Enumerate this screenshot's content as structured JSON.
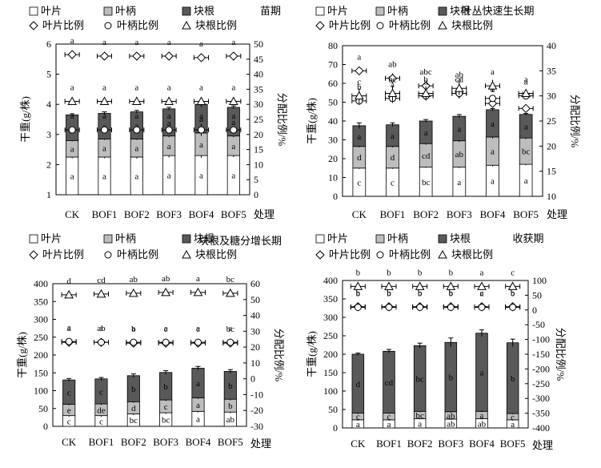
{
  "figure": {
    "category_axis_title": "处理",
    "left_axis_title": "干重(g/株)",
    "right_axis_title": "分配比例/%"
  },
  "legend": {
    "leaf": "叶片",
    "petiole": "叶柄",
    "root": "块根",
    "leaf_ratio": "叶片比例",
    "petiole_ratio": "叶柄比例",
    "root_ratio": "块根比例"
  },
  "colors": {
    "leaf": "#ffffff",
    "petiole": "#bdbdbd",
    "root": "#595959",
    "outline": "#000000"
  },
  "chart_data": [
    {
      "type": "bar",
      "title": "苗期",
      "stacked": true,
      "categories": [
        "CK",
        "BOF1",
        "BOF2",
        "BOF3",
        "BOF4",
        "BOF5"
      ],
      "ylim": [
        1,
        6
      ],
      "yticks": [
        1,
        2,
        3,
        4,
        5,
        6
      ],
      "y2lim": [
        0,
        50
      ],
      "y2ticks": [
        0,
        5,
        10,
        15,
        20,
        25,
        30,
        35,
        40,
        45,
        50
      ],
      "series": [
        {
          "name": "叶片",
          "values": [
            1.25,
            1.25,
            1.25,
            1.3,
            1.3,
            1.3
          ],
          "error": [
            0.04,
            0.04,
            0.05,
            0.06,
            0.07,
            0.05
          ]
        },
        {
          "name": "叶柄",
          "values": [
            0.55,
            0.6,
            0.6,
            0.65,
            0.75,
            0.65
          ],
          "error": [
            0.03,
            0.03,
            0.03,
            0.04,
            0.06,
            0.04
          ]
        },
        {
          "name": "块根",
          "values": [
            0.85,
            0.85,
            0.9,
            0.9,
            0.95,
            0.95
          ],
          "error": [
            0.04,
            0.05,
            0.05,
            0.05,
            0.09,
            0.05
          ]
        }
      ],
      "ratios": [
        {
          "name": "叶片比例",
          "values": [
            46.5,
            46,
            46,
            46,
            45.5,
            46
          ],
          "error": [
            0.3,
            0.3,
            0.3,
            0.3,
            0.4,
            0.3
          ]
        },
        {
          "name": "叶柄比例",
          "values": [
            21.5,
            21.5,
            21.5,
            21.5,
            21.5,
            21.5
          ],
          "error": [
            1,
            1,
            1,
            1,
            2,
            1
          ]
        },
        {
          "name": "块根比例",
          "values": [
            31,
            31,
            31,
            31,
            31,
            31
          ],
          "error": [
            0.5,
            0.5,
            0.5,
            0.5,
            0.8,
            0.5
          ]
        }
      ],
      "bar_letters": {
        "leaf": [
          "a",
          "a",
          "a",
          "a",
          "a",
          "a"
        ],
        "petiole": [
          "a",
          "a",
          "a",
          "a",
          "a",
          "a"
        ],
        "root": [
          "a",
          "a",
          "a",
          "a",
          "a",
          "a"
        ]
      },
      "ratio_letters": {
        "leaf": [
          "a",
          "a",
          "a",
          "a",
          "a",
          "a"
        ],
        "petiole": [
          "a",
          "a",
          "a",
          "a",
          "a",
          "a"
        ],
        "root": [
          "a",
          "a",
          "a",
          "a",
          "a",
          "a"
        ]
      }
    },
    {
      "type": "bar",
      "title": "叶丛快速生长期",
      "stacked": true,
      "categories": [
        "CK",
        "BOF1",
        "BOF2",
        "BOF3",
        "BOF4",
        "BOF5"
      ],
      "ylim": [
        0,
        80
      ],
      "yticks": [
        0,
        10,
        20,
        30,
        40,
        50,
        60,
        70,
        80
      ],
      "y2lim": [
        10,
        40
      ],
      "y2ticks": [
        10,
        15,
        20,
        25,
        30,
        35,
        40
      ],
      "series": [
        {
          "name": "叶片",
          "values": [
            15,
            15,
            15.5,
            15.5,
            16.5,
            17
          ],
          "error": [
            0.4,
            0.4,
            0.4,
            0.5,
            0.6,
            0.5
          ]
        },
        {
          "name": "叶柄",
          "values": [
            11.5,
            11.5,
            12.5,
            14,
            15,
            14
          ],
          "error": [
            0.5,
            0.5,
            0.6,
            0.6,
            0.7,
            0.6
          ]
        },
        {
          "name": "块根",
          "values": [
            11,
            11.5,
            12,
            13,
            14.5,
            12.5
          ],
          "error": [
            1.5,
            1,
            0.8,
            0.9,
            0.6,
            0.5
          ]
        }
      ],
      "ratios": [
        {
          "name": "叶片比例",
          "values": [
            35,
            33.5,
            32,
            30.5,
            28.5,
            27.5
          ],
          "error": [
            0.8,
            1,
            0.8,
            0.7,
            0.6,
            0.5
          ]
        },
        {
          "name": "叶柄比例",
          "values": [
            29,
            29.5,
            30,
            30.5,
            29.5,
            30
          ],
          "error": [
            0.8,
            0.9,
            0.9,
            1,
            0.6,
            0.6
          ]
        },
        {
          "name": "块根比例",
          "values": [
            30,
            30.5,
            30.5,
            31.5,
            32,
            30.5
          ],
          "error": [
            1.5,
            1.5,
            1.4,
            1.3,
            1.2,
            0.6
          ]
        }
      ],
      "bar_letters": {
        "leaf": [
          "c",
          "c",
          "bc",
          "a",
          "a",
          "a"
        ],
        "petiole": [
          "d",
          "d",
          "cd",
          "ab",
          "a",
          "bc"
        ],
        "root": [
          "a",
          "a",
          "a",
          "a",
          "a",
          "a"
        ]
      },
      "ratio_letters": {
        "leaf": [
          "a",
          "ab",
          "abc",
          "cd",
          "d",
          "bc"
        ],
        "petiole": [
          "b",
          "a",
          "a",
          "a",
          "a",
          "a"
        ],
        "root": [
          "c",
          "bc",
          "b",
          "ab",
          "a",
          "a"
        ]
      }
    },
    {
      "type": "bar",
      "title": "块根及糖分增长期",
      "stacked": true,
      "categories": [
        "CK",
        "BOF1",
        "BOF2",
        "BOF3",
        "BOF4",
        "BOF5"
      ],
      "ylim": [
        0,
        400
      ],
      "yticks": [
        0,
        50,
        100,
        150,
        200,
        250,
        300,
        350,
        400
      ],
      "y2lim": [
        -30,
        60
      ],
      "y2ticks": [
        -30,
        -20,
        -10,
        0,
        10,
        20,
        30,
        40,
        50,
        60
      ],
      "series": [
        {
          "name": "叶片",
          "values": [
            30,
            30,
            35,
            38,
            42,
            40
          ],
          "error": [
            3,
            3,
            3,
            3,
            3,
            3
          ]
        },
        {
          "name": "叶柄",
          "values": [
            32,
            33,
            34,
            36,
            38,
            36
          ],
          "error": [
            3,
            3,
            3,
            3,
            3,
            3
          ]
        },
        {
          "name": "块根",
          "values": [
            68,
            70,
            73,
            77,
            83,
            78
          ],
          "error": [
            4,
            4,
            5,
            5,
            5,
            5
          ]
        }
      ],
      "ratios": [
        {
          "name": "叶片比例",
          "values": [
            23,
            23,
            22.5,
            22.5,
            22.5,
            22.5
          ],
          "error": [
            0.8,
            0.8,
            0.8,
            0.8,
            0.8,
            0.8
          ]
        },
        {
          "name": "叶柄比例",
          "values": [
            23.5,
            23,
            23,
            23,
            23,
            23
          ],
          "error": [
            0.8,
            0.8,
            0.8,
            0.8,
            0.8,
            0.8
          ]
        },
        {
          "name": "块根比例",
          "values": [
            53,
            53.5,
            54,
            54.5,
            54.5,
            54
          ],
          "error": [
            1.2,
            1.2,
            1.2,
            1.2,
            1.2,
            1.2
          ]
        }
      ],
      "bar_letters": {
        "leaf": [
          "c",
          "c",
          "bc",
          "bc",
          "a",
          "ab"
        ],
        "petiole": [
          "e",
          "de",
          "d",
          "c",
          "a",
          "b"
        ],
        "root": [
          "c",
          "c",
          "b",
          "b",
          "a",
          "b"
        ]
      },
      "ratio_letters": {
        "leaf": [
          "a",
          "ab",
          "b",
          "c",
          "c",
          "bc"
        ],
        "petiole": [
          "a",
          "a",
          "a",
          "a",
          "a",
          "a"
        ],
        "root": [
          "d",
          "cd",
          "ab",
          "ab",
          "a",
          "bc"
        ]
      }
    },
    {
      "type": "bar",
      "title": "收获期",
      "stacked": true,
      "categories": [
        "CK",
        "BOF1",
        "BOF2",
        "BOF3",
        "BOF4",
        "BOF5"
      ],
      "ylim": [
        0,
        400
      ],
      "yticks": [
        0,
        50,
        100,
        150,
        200,
        250,
        300,
        350,
        400
      ],
      "y2lim": [
        -400,
        100
      ],
      "y2ticks": [
        -400,
        -350,
        -300,
        -250,
        -200,
        -150,
        -100,
        -50,
        0,
        50,
        100
      ],
      "series": [
        {
          "name": "叶片",
          "values": [
            22,
            22,
            25,
            24,
            25,
            22
          ],
          "error": [
            2,
            2,
            2,
            2,
            2,
            2
          ]
        },
        {
          "name": "叶柄",
          "values": [
            18,
            18,
            20,
            20,
            20,
            17
          ],
          "error": [
            2,
            2,
            2,
            2,
            2,
            2
          ]
        },
        {
          "name": "块根",
          "values": [
            160,
            168,
            178,
            188,
            212,
            192
          ],
          "error": [
            3,
            5,
            7,
            12,
            9,
            10
          ]
        }
      ],
      "ratios": [
        {
          "name": "叶片比例",
          "values": [
            11,
            11,
            11,
            11,
            11,
            11
          ],
          "error": [
            2,
            2,
            2,
            2,
            2,
            2
          ]
        },
        {
          "name": "叶柄比例",
          "values": [
            9,
            9,
            9,
            9,
            9,
            9
          ],
          "error": [
            2,
            2,
            2,
            2,
            2,
            2
          ]
        },
        {
          "name": "块根比例",
          "values": [
            80,
            80,
            80,
            80,
            80,
            80
          ],
          "error": [
            3,
            3,
            3,
            3,
            3,
            3
          ]
        }
      ],
      "bar_letters": {
        "leaf": [
          "a",
          "a",
          "a",
          "ab",
          "ab",
          "a"
        ],
        "petiole": [
          "c",
          "c",
          "bc",
          "ab",
          "a",
          "c"
        ],
        "root": [
          "d",
          "cd",
          "bc",
          "b",
          "a",
          "b"
        ]
      },
      "ratio_letters": {
        "leaf": [
          "b",
          "b",
          "b",
          "b",
          "c",
          "b"
        ],
        "petiole": [
          "b",
          "b",
          "b",
          "b",
          "a",
          "b"
        ],
        "root": [
          "b",
          "b",
          "b",
          "b",
          "a",
          "c"
        ]
      }
    }
  ]
}
